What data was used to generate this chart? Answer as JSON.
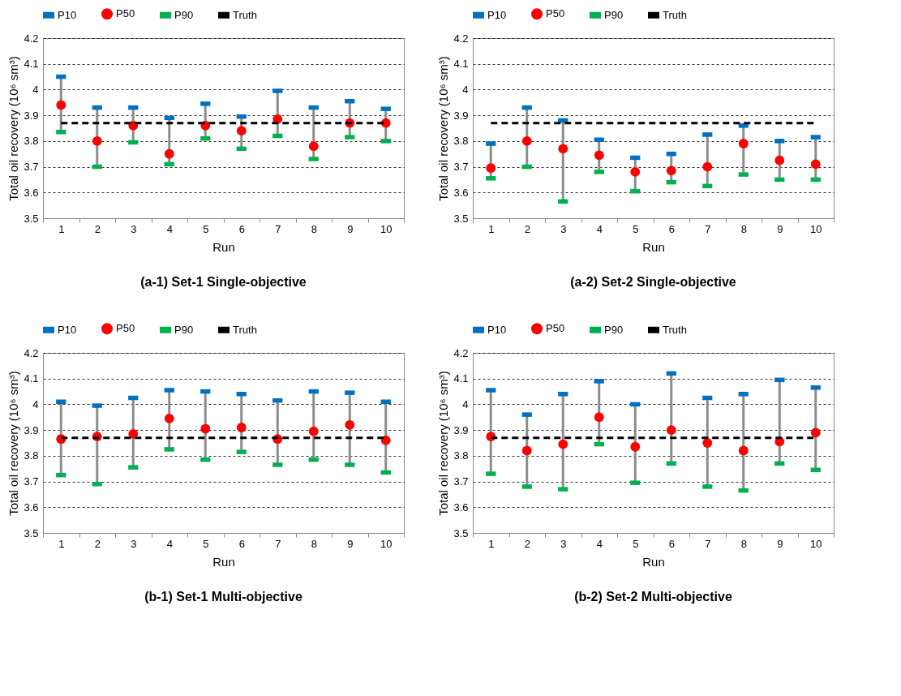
{
  "chart_data": [
    {
      "type": "scatter",
      "title": "(a-1) Set-1 Single-objective",
      "xlabel": "Run",
      "ylabel": "Total oil recovery (10⁶ sm³)",
      "categories": [
        "1",
        "2",
        "3",
        "4",
        "5",
        "6",
        "7",
        "8",
        "9",
        "10"
      ],
      "ylim": [
        3.5,
        4.2
      ],
      "yticks": [
        3.5,
        3.6,
        3.7,
        3.8,
        3.9,
        4,
        4.1,
        4.2
      ],
      "grid": "y",
      "legend": "top",
      "series": [
        {
          "name": "P10",
          "color": "#0070c0",
          "values": [
            4.05,
            3.93,
            3.93,
            3.89,
            3.945,
            3.895,
            3.995,
            3.93,
            3.955,
            3.925
          ]
        },
        {
          "name": "P50",
          "color": "#ff0000",
          "marker": "circle",
          "values": [
            3.94,
            3.8,
            3.86,
            3.75,
            3.86,
            3.84,
            3.885,
            3.78,
            3.87,
            3.87
          ]
        },
        {
          "name": "P90",
          "color": "#00b050",
          "values": [
            3.835,
            3.7,
            3.795,
            3.71,
            3.81,
            3.77,
            3.82,
            3.73,
            3.815,
            3.8
          ]
        },
        {
          "name": "Truth",
          "type": "line",
          "line_style": "dashed",
          "color": "#000000",
          "values": [
            3.87,
            3.87,
            3.87,
            3.87,
            3.87,
            3.87,
            3.87,
            3.87,
            3.87,
            3.87
          ]
        }
      ]
    },
    {
      "type": "scatter",
      "title": "(a-2) Set-2 Single-objective",
      "xlabel": "Run",
      "ylabel": "Total oil recovery (10⁶ sm³)",
      "categories": [
        "1",
        "2",
        "3",
        "4",
        "5",
        "6",
        "7",
        "8",
        "9",
        "10"
      ],
      "ylim": [
        3.5,
        4.2
      ],
      "yticks": [
        3.5,
        3.6,
        3.7,
        3.8,
        3.9,
        4,
        4.1,
        4.2
      ],
      "grid": "y",
      "legend": "top",
      "series": [
        {
          "name": "P10",
          "color": "#0070c0",
          "values": [
            3.79,
            3.93,
            3.88,
            3.805,
            3.735,
            3.75,
            3.825,
            3.86,
            3.8,
            3.815
          ]
        },
        {
          "name": "P50",
          "color": "#ff0000",
          "marker": "circle",
          "values": [
            3.695,
            3.8,
            3.77,
            3.745,
            3.68,
            3.685,
            3.7,
            3.79,
            3.725,
            3.71
          ]
        },
        {
          "name": "P90",
          "color": "#00b050",
          "values": [
            3.655,
            3.7,
            3.565,
            3.68,
            3.605,
            3.64,
            3.625,
            3.67,
            3.65,
            3.65
          ]
        },
        {
          "name": "Truth",
          "type": "line",
          "line_style": "dashed",
          "color": "#000000",
          "values": [
            3.87,
            3.87,
            3.87,
            3.87,
            3.87,
            3.87,
            3.87,
            3.87,
            3.87,
            3.87
          ]
        }
      ]
    },
    {
      "type": "scatter",
      "title": "(b-1) Set-1 Multi-objective",
      "xlabel": "Run",
      "ylabel": "Total oil recovery (10⁶ sm³)",
      "categories": [
        "1",
        "2",
        "3",
        "4",
        "5",
        "6",
        "7",
        "8",
        "9",
        "10"
      ],
      "ylim": [
        3.5,
        4.2
      ],
      "yticks": [
        3.5,
        3.6,
        3.7,
        3.8,
        3.9,
        4,
        4.1,
        4.2
      ],
      "grid": "y",
      "legend": "top",
      "series": [
        {
          "name": "P10",
          "color": "#0070c0",
          "values": [
            4.01,
            3.995,
            4.025,
            4.055,
            4.05,
            4.04,
            4.015,
            4.05,
            4.045,
            4.01
          ]
        },
        {
          "name": "P50",
          "color": "#ff0000",
          "marker": "circle",
          "values": [
            3.865,
            3.875,
            3.885,
            3.945,
            3.905,
            3.91,
            3.865,
            3.895,
            3.92,
            3.86
          ]
        },
        {
          "name": "P90",
          "color": "#00b050",
          "values": [
            3.725,
            3.69,
            3.755,
            3.825,
            3.785,
            3.815,
            3.765,
            3.785,
            3.765,
            3.735
          ]
        },
        {
          "name": "Truth",
          "type": "line",
          "line_style": "dashed",
          "color": "#000000",
          "values": [
            3.87,
            3.87,
            3.87,
            3.87,
            3.87,
            3.87,
            3.87,
            3.87,
            3.87,
            3.87
          ]
        }
      ]
    },
    {
      "type": "scatter",
      "title": "(b-2) Set-2 Multi-objective",
      "xlabel": "Run",
      "ylabel": "Total oil recovery (10⁶ sm³)",
      "categories": [
        "1",
        "2",
        "3",
        "4",
        "5",
        "6",
        "7",
        "8",
        "9",
        "10"
      ],
      "ylim": [
        3.5,
        4.2
      ],
      "yticks": [
        3.5,
        3.6,
        3.7,
        3.8,
        3.9,
        4,
        4.1,
        4.2
      ],
      "grid": "y",
      "legend": "top",
      "series": [
        {
          "name": "P10",
          "color": "#0070c0",
          "values": [
            4.055,
            3.96,
            4.04,
            4.09,
            4.0,
            4.12,
            4.025,
            4.04,
            4.095,
            4.065
          ]
        },
        {
          "name": "P50",
          "color": "#ff0000",
          "marker": "circle",
          "values": [
            3.875,
            3.82,
            3.845,
            3.95,
            3.835,
            3.9,
            3.85,
            3.82,
            3.855,
            3.89
          ]
        },
        {
          "name": "P90",
          "color": "#00b050",
          "values": [
            3.73,
            3.68,
            3.67,
            3.845,
            3.695,
            3.77,
            3.68,
            3.665,
            3.77,
            3.745
          ]
        },
        {
          "name": "Truth",
          "type": "line",
          "line_style": "dashed",
          "color": "#000000",
          "values": [
            3.87,
            3.87,
            3.87,
            3.87,
            3.87,
            3.87,
            3.87,
            3.87,
            3.87,
            3.87
          ]
        }
      ]
    }
  ]
}
